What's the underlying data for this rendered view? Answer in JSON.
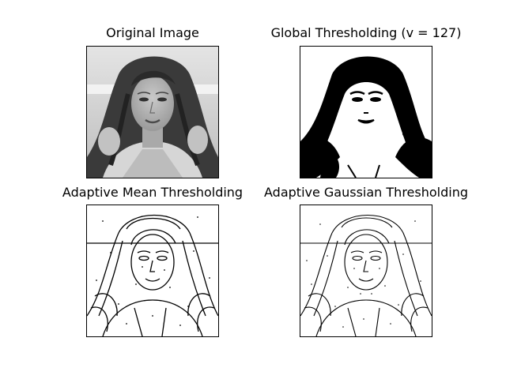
{
  "figure": {
    "panels": [
      {
        "title": "Original Image",
        "image_icon": "grayscale-portrait-photo"
      },
      {
        "title": "Global Thresholding (v = 127)",
        "image_icon": "binary-threshold-portrait"
      },
      {
        "title": "Adaptive Mean Thresholding",
        "image_icon": "adaptive-mean-edge-portrait"
      },
      {
        "title": "Adaptive Gaussian Thresholding",
        "image_icon": "adaptive-gaussian-edge-portrait"
      }
    ]
  }
}
